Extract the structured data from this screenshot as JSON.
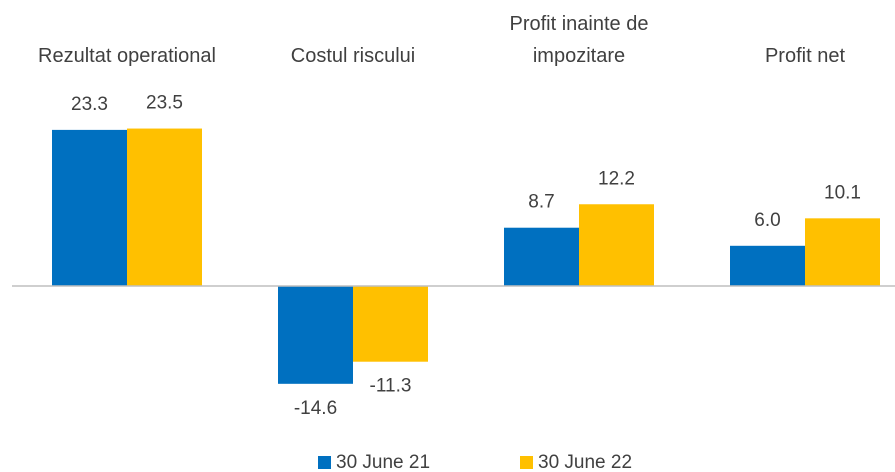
{
  "chart_data": {
    "type": "bar",
    "categories": [
      "Rezultat operational",
      "Costul riscului",
      "Profit inainte de impozitare",
      "Profit net"
    ],
    "series": [
      {
        "name": "30 June 21",
        "color": "#0070c0",
        "values": [
          23.3,
          -14.6,
          8.7,
          6.0
        ],
        "value_labels": [
          "23.3",
          "-14.6",
          "8.7",
          "6.0"
        ]
      },
      {
        "name": "30 June 22",
        "color": "#ffc000",
        "values": [
          23.5,
          -11.3,
          12.2,
          10.1
        ],
        "value_labels": [
          "23.5",
          "-11.3",
          "12.2",
          "10.1"
        ]
      }
    ],
    "ylim": [
      -20,
      30
    ],
    "legend": "bottom"
  }
}
